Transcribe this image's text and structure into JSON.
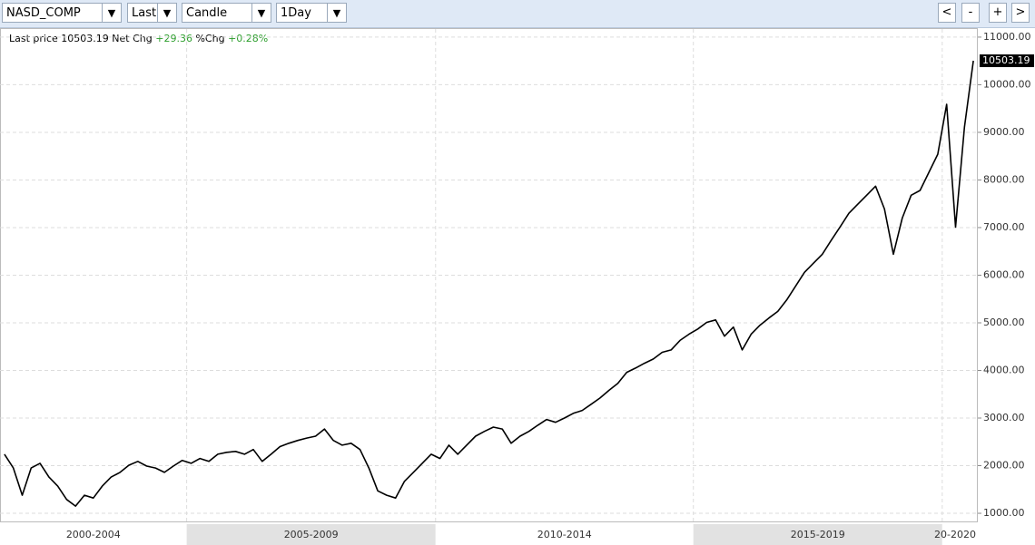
{
  "toolbar": {
    "selects": [
      "NASD_COMP",
      "Last",
      "Candle",
      "1Day"
    ],
    "buttons": [
      "<",
      "-",
      "+",
      ">"
    ]
  },
  "chart_data": {
    "type": "line",
    "color": "#000000",
    "info": {
      "last_price_label": "Last price",
      "net_chg_label": "Net Chg",
      "net_chg": "+29.36",
      "pct_chg_label": "%Chg",
      "pct_chg": "+0.28%"
    },
    "periods": [
      {
        "label": "2000-2004",
        "values": [
          2240,
          1950,
          1380,
          1950,
          2050,
          1760,
          1570,
          1290,
          1150,
          1380,
          1320,
          1570,
          1760,
          1860,
          2010,
          2090,
          1990,
          1950,
          1860,
          1990,
          2110
        ]
      },
      {
        "label": "2005-2009",
        "values": [
          2050,
          2150,
          2090,
          2240,
          2280,
          2300,
          2240,
          2340,
          2090,
          2240,
          2400,
          2470,
          2530,
          2580,
          2620,
          2770,
          2530,
          2430,
          2470,
          2340,
          1950,
          1470,
          1380,
          1320,
          1670,
          1860,
          2050,
          2240
        ]
      },
      {
        "label": "2010-2014",
        "values": [
          2150,
          2430,
          2240,
          2430,
          2620,
          2720,
          2810,
          2770,
          2470,
          2620,
          2720,
          2850,
          2970,
          2910,
          3000,
          3100,
          3160,
          3290,
          3420,
          3580,
          3730,
          3960,
          4050,
          4150,
          4240,
          4380,
          4430,
          4630,
          4760
        ]
      },
      {
        "label": "2015-2019",
        "values": [
          4870,
          5010,
          5060,
          4720,
          4910,
          4430,
          4760,
          4950,
          5100,
          5240,
          5480,
          5770,
          6060,
          6250,
          6440,
          6730,
          7010,
          7300,
          7490,
          7680,
          7870,
          7390,
          6440,
          7200,
          7680,
          7780,
          8160,
          8540
        ]
      },
      {
        "label": "20-2020",
        "values": [
          9590,
          7010,
          9110,
          10503.19
        ]
      }
    ],
    "ylim": [
      810,
      11170
    ],
    "yticks": [
      {
        "value": 1000,
        "label": "1000.00"
      },
      {
        "value": 2000,
        "label": "2000.00"
      },
      {
        "value": 3000,
        "label": "3000.00"
      },
      {
        "value": 4000,
        "label": "4000.00"
      },
      {
        "value": 5000,
        "label": "5000.00"
      },
      {
        "value": 6000,
        "label": "6000.00"
      },
      {
        "value": 7000,
        "label": "7000.00"
      },
      {
        "value": 8000,
        "label": "8000.00"
      },
      {
        "value": 9000,
        "label": "9000.00"
      },
      {
        "value": 10000,
        "label": "10000.00"
      },
      {
        "value": 11000,
        "label": "11000.00"
      }
    ],
    "grid": true
  }
}
